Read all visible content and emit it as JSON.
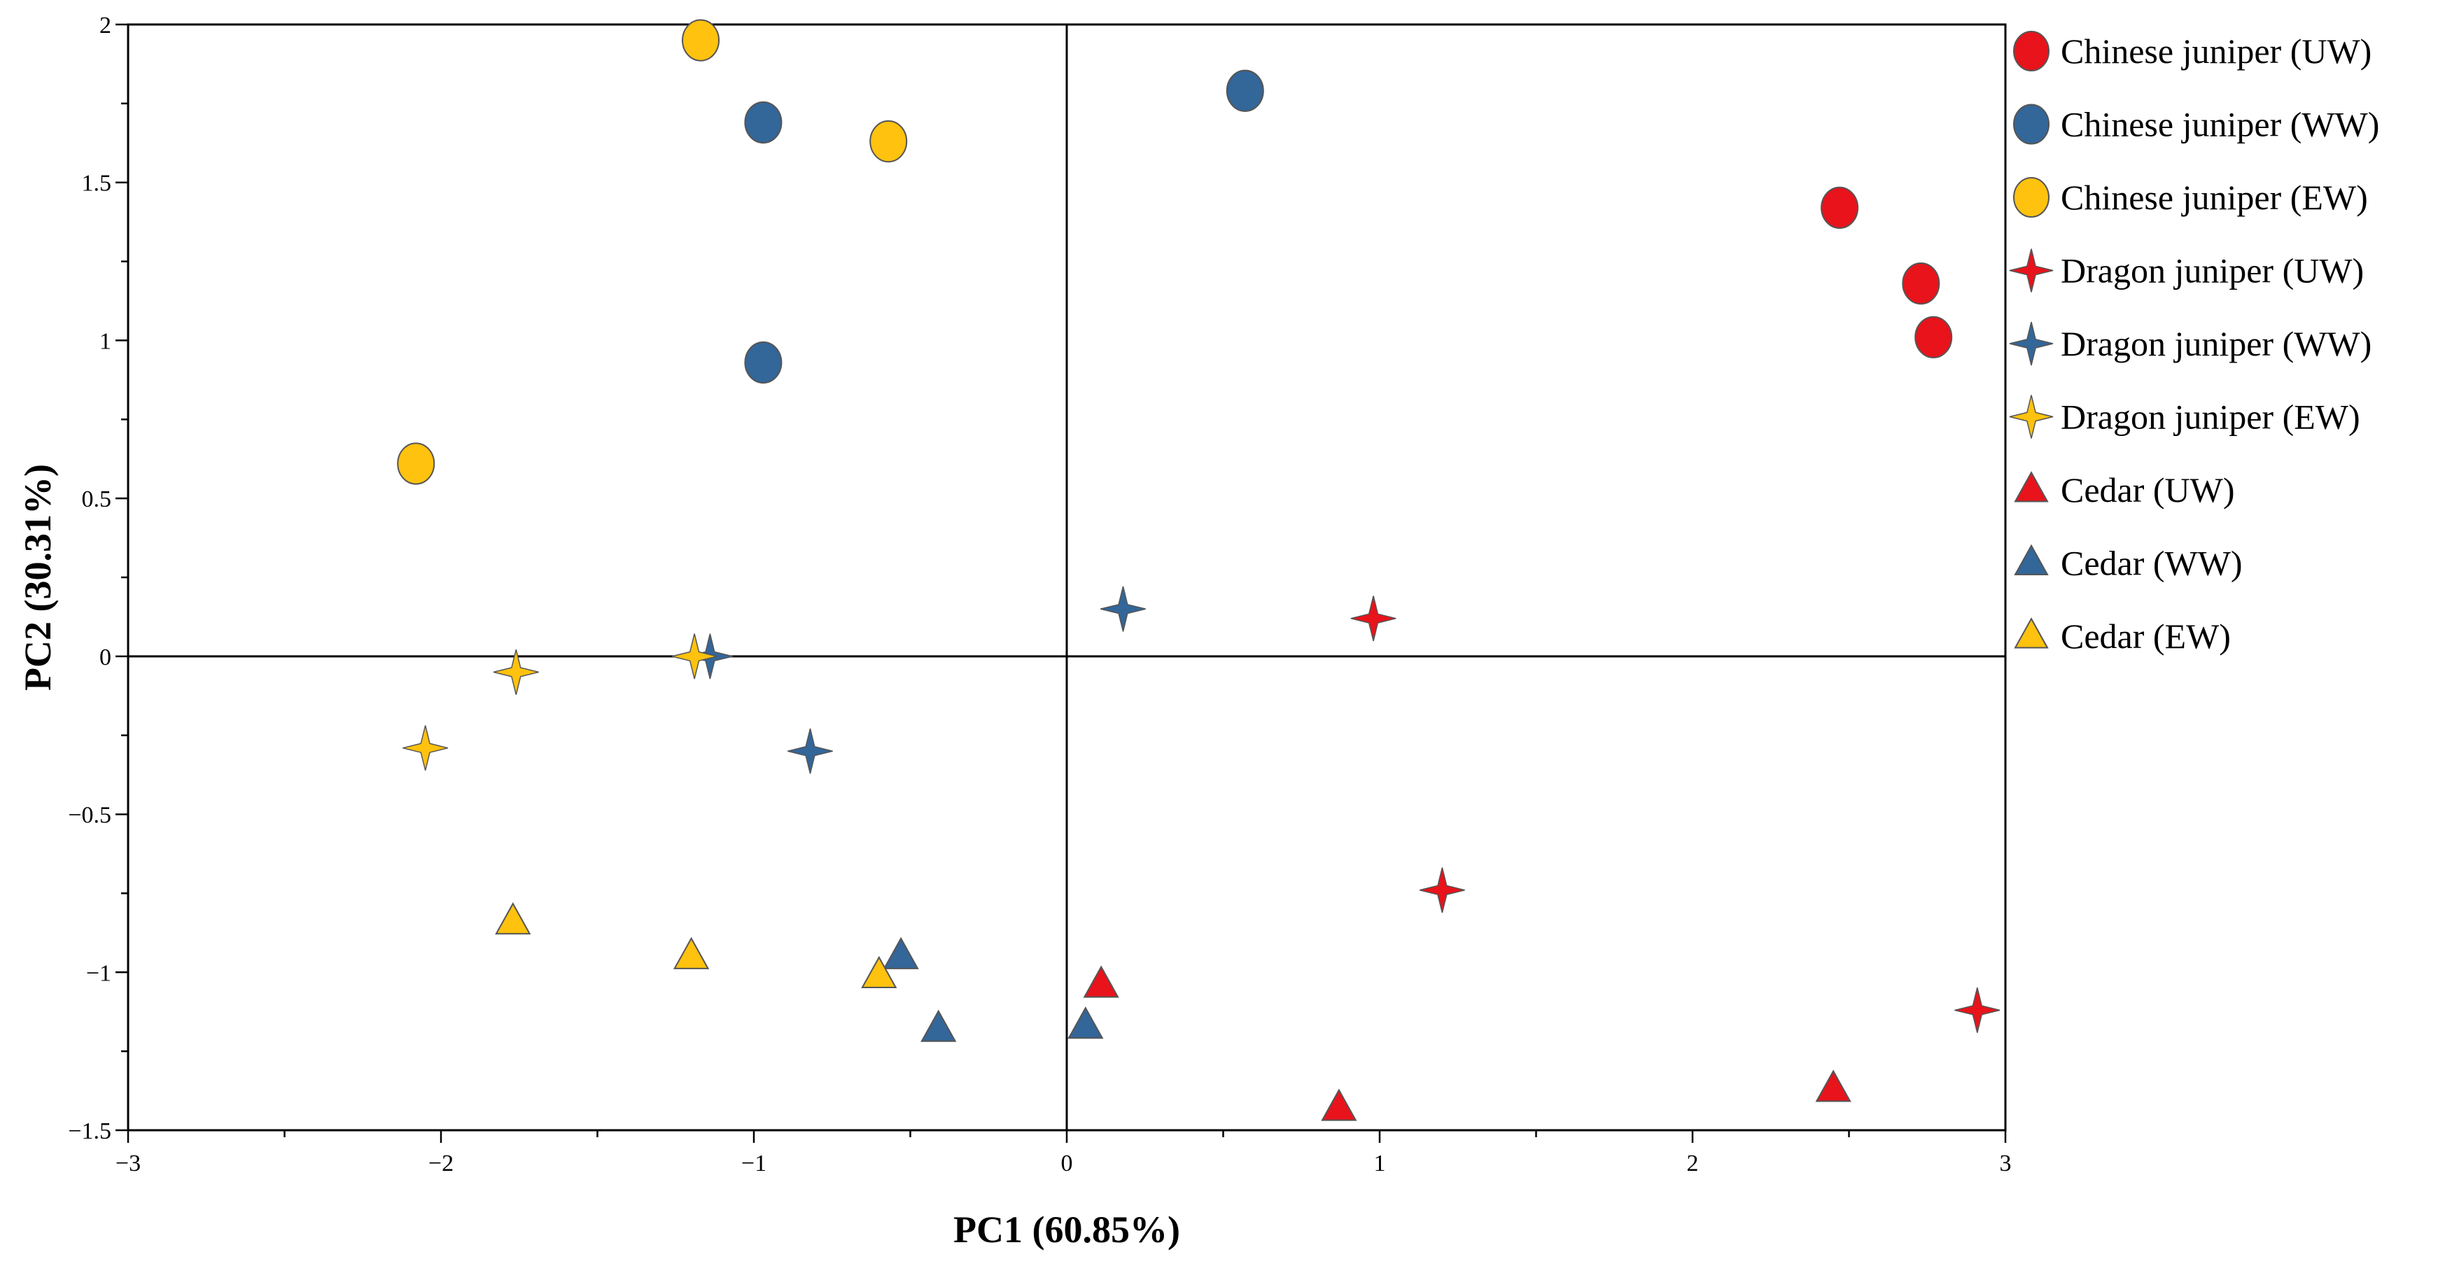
{
  "chart_data": {
    "type": "scatter",
    "title": "",
    "xlabel": "PC1 (60.85%)",
    "ylabel": "PC2 (30.31%)",
    "xlim": [
      -3,
      3
    ],
    "ylim": [
      -1.5,
      2
    ],
    "xticks": [
      -3,
      -2,
      -1,
      0,
      1,
      2,
      3
    ],
    "xtick_labels": [
      "−3",
      "−2",
      "−1",
      "0",
      "1",
      "2",
      "3"
    ],
    "yticks": [
      -1.5,
      -1,
      -0.5,
      0,
      0.5,
      1,
      1.5,
      2
    ],
    "ytick_labels": [
      "−1.5",
      "−1",
      "−0.5",
      "0",
      "0.5",
      "1",
      "1.5",
      "2"
    ],
    "grid": false,
    "zero_lines": true,
    "legend_position": "right",
    "colors": {
      "UW": "#E8131B",
      "WW": "#336699",
      "EW": "#FFC20E"
    },
    "series": [
      {
        "name": "Chinese juniper (UW)",
        "marker": "circle",
        "group": "UW",
        "points": [
          {
            "x": 2.47,
            "y": 1.42
          },
          {
            "x": 2.73,
            "y": 1.18
          },
          {
            "x": 2.77,
            "y": 1.01
          }
        ]
      },
      {
        "name": "Chinese juniper (WW)",
        "marker": "circle",
        "group": "WW",
        "points": [
          {
            "x": -0.97,
            "y": 1.69
          },
          {
            "x": 0.57,
            "y": 1.79
          },
          {
            "x": -0.97,
            "y": 0.93
          }
        ]
      },
      {
        "name": "Chinese juniper (EW)",
        "marker": "circle",
        "group": "EW",
        "points": [
          {
            "x": -1.17,
            "y": 1.95
          },
          {
            "x": -0.57,
            "y": 1.63
          },
          {
            "x": -2.08,
            "y": 0.61
          }
        ]
      },
      {
        "name": "Dragon juniper (UW)",
        "marker": "star",
        "group": "UW",
        "points": [
          {
            "x": 0.98,
            "y": 0.12
          },
          {
            "x": 1.2,
            "y": -0.74
          },
          {
            "x": 2.91,
            "y": -1.12
          }
        ]
      },
      {
        "name": "Dragon juniper (WW)",
        "marker": "star",
        "group": "WW",
        "points": [
          {
            "x": 0.18,
            "y": 0.15
          },
          {
            "x": -1.14,
            "y": 0.0
          },
          {
            "x": -0.82,
            "y": -0.3
          }
        ]
      },
      {
        "name": "Dragon juniper (EW)",
        "marker": "star",
        "group": "EW",
        "points": [
          {
            "x": -1.76,
            "y": -0.05
          },
          {
            "x": -1.19,
            "y": 0.0
          },
          {
            "x": -2.05,
            "y": -0.29
          }
        ]
      },
      {
        "name": "Cedar (UW)",
        "marker": "triangle",
        "group": "UW",
        "points": [
          {
            "x": 0.11,
            "y": -1.04
          },
          {
            "x": 0.87,
            "y": -1.43
          },
          {
            "x": 2.45,
            "y": -1.37
          }
        ]
      },
      {
        "name": "Cedar (WW)",
        "marker": "triangle",
        "group": "WW",
        "points": [
          {
            "x": -0.53,
            "y": -0.95
          },
          {
            "x": -0.41,
            "y": -1.18
          },
          {
            "x": 0.06,
            "y": -1.17
          }
        ]
      },
      {
        "name": "Cedar (EW)",
        "marker": "triangle",
        "group": "EW",
        "points": [
          {
            "x": -1.77,
            "y": -0.84
          },
          {
            "x": -1.2,
            "y": -0.95
          },
          {
            "x": -0.6,
            "y": -1.01
          }
        ]
      }
    ]
  }
}
